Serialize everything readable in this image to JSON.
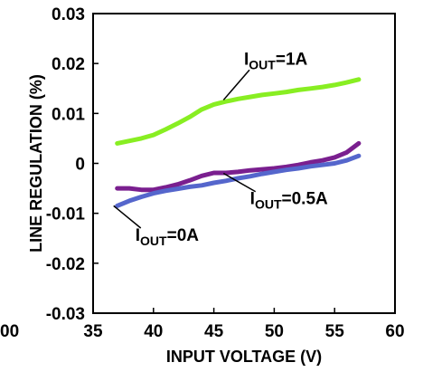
{
  "chart_data": {
    "type": "line",
    "xlabel": "INPUT VOLTAGE (V)",
    "ylabel": "LINE REGULATION (%)",
    "xlim": [
      35,
      60
    ],
    "ylim": [
      -0.03,
      0.03
    ],
    "xticks": [
      35,
      40,
      45,
      50,
      55,
      60
    ],
    "yticks": [
      -0.03,
      -0.02,
      -0.01,
      0,
      0.01,
      0.02,
      0.03
    ],
    "xtick_labels": [
      "35",
      "40",
      "45",
      "50",
      "55",
      "60"
    ],
    "ytick_labels": [
      "-0.03",
      "-0.02",
      "-0.01",
      "0",
      "0.01",
      "0.02",
      "0.03"
    ],
    "cropped_left_label": "00",
    "grid": false,
    "legend": "none",
    "series": [
      {
        "color": "#88ee22",
        "x": [
          37,
          38,
          39,
          40,
          41,
          42,
          43,
          44,
          45,
          46,
          47,
          48,
          49,
          50,
          51,
          52,
          53,
          54,
          55,
          56,
          57
        ],
        "y": [
          0.004,
          0.0045,
          0.005,
          0.0057,
          0.0068,
          0.008,
          0.0093,
          0.0108,
          0.0118,
          0.0124,
          0.0129,
          0.0133,
          0.0137,
          0.014,
          0.0143,
          0.0147,
          0.015,
          0.0153,
          0.0157,
          0.0162,
          0.0168
        ]
      },
      {
        "color": "#7a1f8f",
        "x": [
          37,
          38,
          39,
          40,
          41,
          42,
          43,
          44,
          45,
          46,
          47,
          48,
          49,
          50,
          51,
          52,
          53,
          54,
          55,
          56,
          57
        ],
        "y": [
          -0.005,
          -0.005,
          -0.0053,
          -0.0053,
          -0.0048,
          -0.0042,
          -0.0034,
          -0.0025,
          -0.0019,
          -0.0019,
          -0.0017,
          -0.0014,
          -0.0012,
          -0.001,
          -0.0007,
          -0.0003,
          0.0002,
          0.0006,
          0.0012,
          0.0022,
          0.004
        ]
      },
      {
        "color": "#5566cc",
        "x": [
          37,
          38,
          39,
          40,
          41,
          42,
          43,
          44,
          45,
          46,
          47,
          48,
          49,
          50,
          51,
          52,
          53,
          54,
          55,
          56,
          57
        ],
        "y": [
          -0.0085,
          -0.0075,
          -0.0067,
          -0.006,
          -0.0055,
          -0.0051,
          -0.0047,
          -0.0044,
          -0.0039,
          -0.0035,
          -0.003,
          -0.0026,
          -0.0021,
          -0.0017,
          -0.0013,
          -0.001,
          -0.0006,
          -0.0003,
          0.0,
          0.0006,
          0.0015
        ]
      }
    ],
    "annotations": [
      {
        "prefix": "I",
        "sub": "OUT",
        "suffix": "=1A",
        "x": 47.5,
        "y": 0.0198,
        "leader_to": [
          45.8,
          0.0127
        ]
      },
      {
        "prefix": "I",
        "sub": "OUT",
        "suffix": "=0.5A",
        "x": 48.0,
        "y": -0.0082,
        "leader_to": [
          45.8,
          -0.002
        ]
      },
      {
        "prefix": "I",
        "sub": "OUT",
        "suffix": "=0A",
        "x": 38.5,
        "y": -0.0155,
        "leader_to": [
          36.7,
          -0.0085
        ]
      }
    ]
  }
}
